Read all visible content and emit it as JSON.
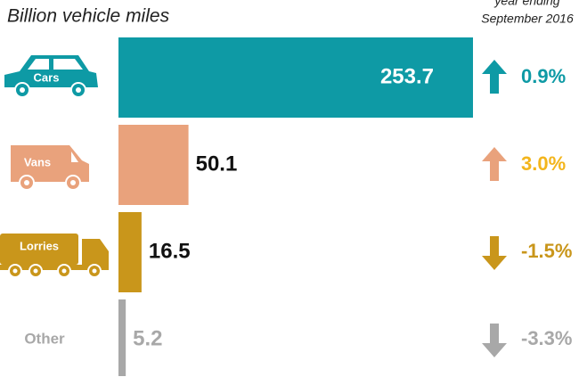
{
  "chart_data": {
    "type": "bar",
    "title": "Billion vehicle miles",
    "note": [
      "year ending",
      "September 2016"
    ],
    "categories": [
      "Cars",
      "Vans",
      "Lorries",
      "Other"
    ],
    "values": [
      253.7,
      50.1,
      16.5,
      5.2
    ],
    "colors": [
      "#0e9aa5",
      "#e9a27c",
      "#c9961b",
      "#a8a8a8"
    ],
    "change": [
      0.9,
      3.0,
      -1.5,
      -3.3
    ],
    "change_labels": [
      "0.9%",
      "3.0%",
      "-1.5%",
      "-3.3%"
    ],
    "change_colors": [
      "#0e9aa5",
      "#f3b51c",
      "#c9961b",
      "#a8a8a8"
    ]
  }
}
